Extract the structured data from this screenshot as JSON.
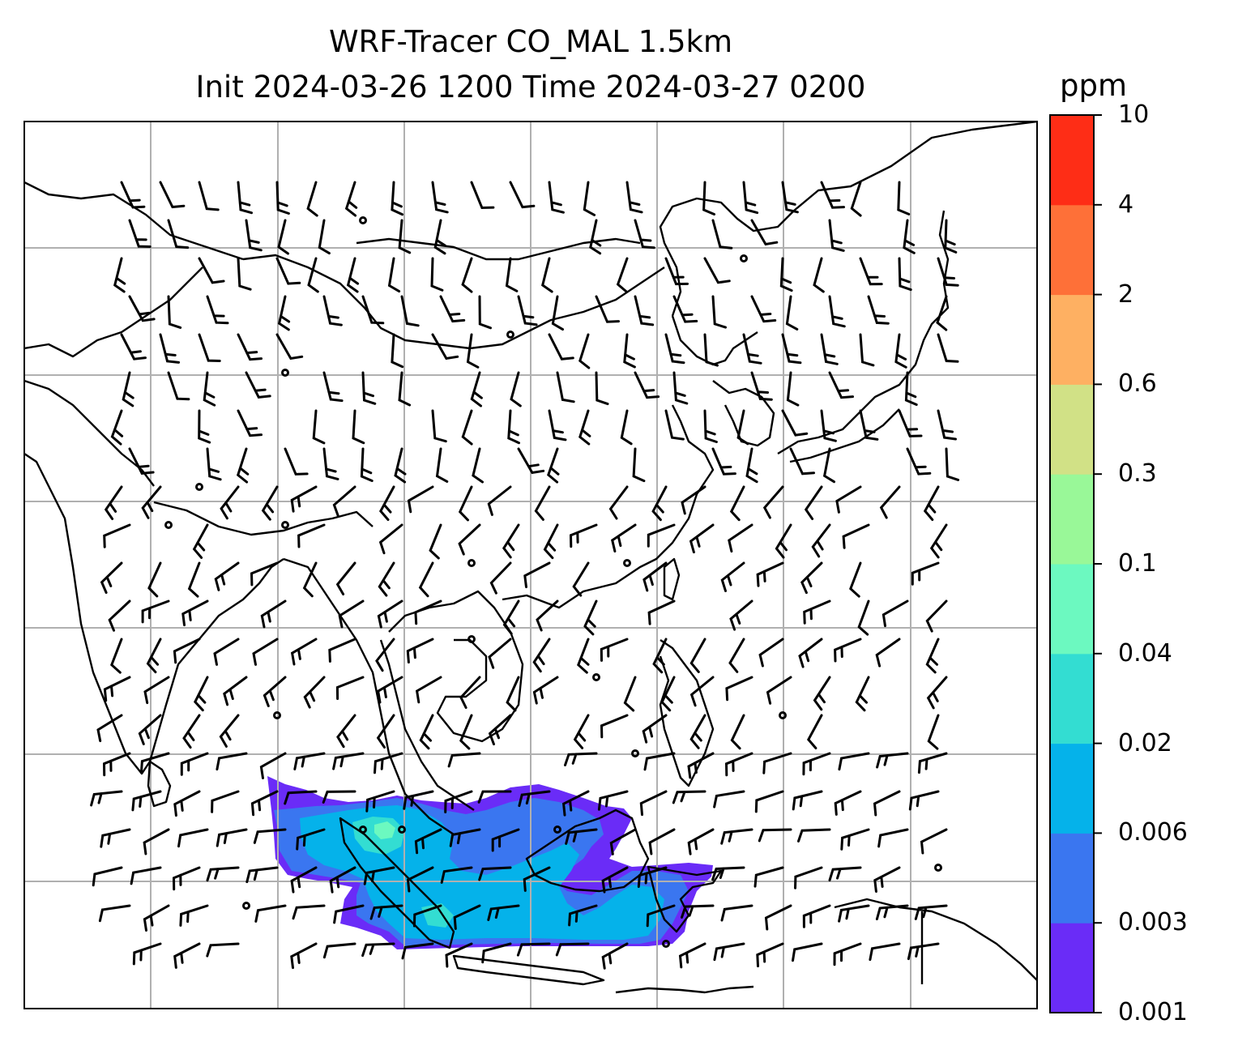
{
  "title": {
    "line1": "WRF-Tracer CO_MAL 1.5km",
    "line2": "Init 2024-03-26 1200 Time 2024-03-27 0200"
  },
  "colorbar": {
    "unit": "ppm",
    "levels": [
      "0.001",
      "0.003",
      "0.006",
      "0.02",
      "0.04",
      "0.1",
      "0.3",
      "0.6",
      "2",
      "4",
      "10"
    ],
    "colors": [
      "#6a2cf7",
      "#3a76f0",
      "#05b2ea",
      "#33ddd2",
      "#6cf9c0",
      "#99f898",
      "#d1e186",
      "#feb062",
      "#fe7038",
      "#fe2d16"
    ]
  },
  "map": {
    "gridlines": true,
    "frame_color": "#000000",
    "grid_color": "#b0b0b0",
    "coastline_color": "#000000",
    "wind_barb_color": "#000000"
  }
}
